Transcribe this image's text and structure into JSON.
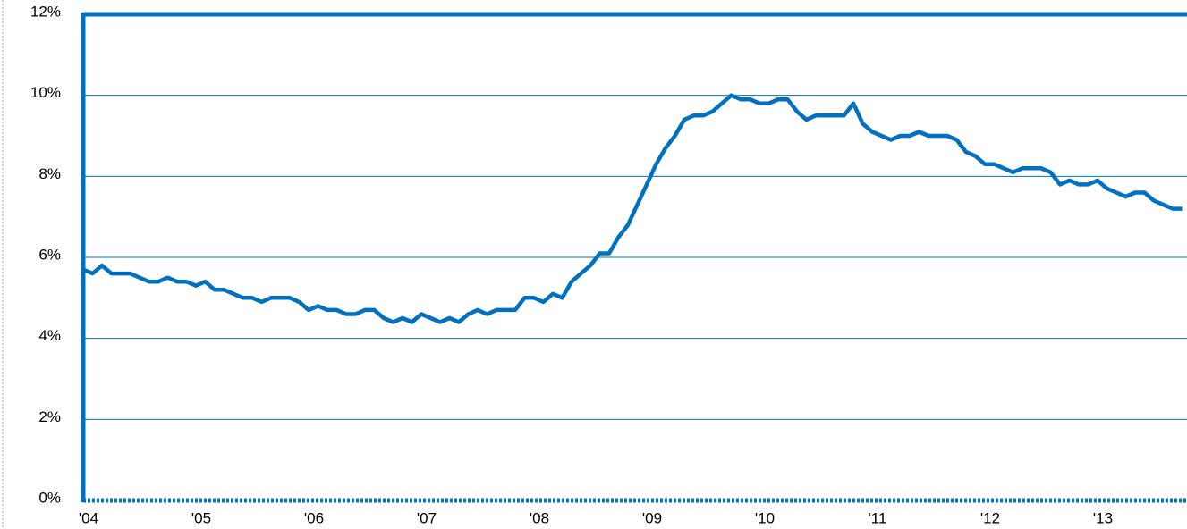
{
  "chart_data": {
    "type": "line",
    "categories": [
      "'04",
      null,
      null,
      null,
      null,
      null,
      null,
      null,
      null,
      null,
      null,
      null,
      "'05",
      null,
      null,
      null,
      null,
      null,
      null,
      null,
      null,
      null,
      null,
      null,
      "'06",
      null,
      null,
      null,
      null,
      null,
      null,
      null,
      null,
      null,
      null,
      null,
      "'07",
      null,
      null,
      null,
      null,
      null,
      null,
      null,
      null,
      null,
      null,
      null,
      "'08",
      null,
      null,
      null,
      null,
      null,
      null,
      null,
      null,
      null,
      null,
      null,
      "'09",
      null,
      null,
      null,
      null,
      null,
      null,
      null,
      null,
      null,
      null,
      null,
      "'10",
      null,
      null,
      null,
      null,
      null,
      null,
      null,
      null,
      null,
      null,
      null,
      "'11",
      null,
      null,
      null,
      null,
      null,
      null,
      null,
      null,
      null,
      null,
      null,
      "'12",
      null,
      null,
      null,
      null,
      null,
      null,
      null,
      null,
      null,
      null,
      null,
      "'13",
      null,
      null,
      null,
      null,
      null,
      null,
      null,
      null,
      null
    ],
    "values": [
      5.7,
      5.6,
      5.8,
      5.6,
      5.6,
      5.6,
      5.5,
      5.4,
      5.4,
      5.5,
      5.4,
      5.4,
      5.3,
      5.4,
      5.2,
      5.2,
      5.1,
      5.0,
      5.0,
      4.9,
      5.0,
      5.0,
      5.0,
      4.9,
      4.7,
      4.8,
      4.7,
      4.7,
      4.6,
      4.6,
      4.7,
      4.7,
      4.5,
      4.4,
      4.5,
      4.4,
      4.6,
      4.5,
      4.4,
      4.5,
      4.4,
      4.6,
      4.7,
      4.6,
      4.7,
      4.7,
      4.7,
      5.0,
      5.0,
      4.9,
      5.1,
      5.0,
      5.4,
      5.6,
      5.8,
      6.1,
      6.1,
      6.5,
      6.8,
      7.3,
      7.8,
      8.3,
      8.7,
      9.0,
      9.4,
      9.5,
      9.5,
      9.6,
      9.8,
      10.0,
      9.9,
      9.9,
      9.8,
      9.8,
      9.9,
      9.9,
      9.6,
      9.4,
      9.5,
      9.5,
      9.5,
      9.5,
      9.8,
      9.3,
      9.1,
      9.0,
      8.9,
      9.0,
      9.0,
      9.1,
      9.0,
      9.0,
      9.0,
      8.9,
      8.6,
      8.5,
      8.3,
      8.3,
      8.2,
      8.1,
      8.2,
      8.2,
      8.2,
      8.1,
      7.8,
      7.9,
      7.8,
      7.8,
      7.9,
      7.7,
      7.6,
      7.5,
      7.6,
      7.6,
      7.4,
      7.3,
      7.2,
      7.2
    ],
    "color": "#0070c0",
    "ylim": [
      0,
      12
    ],
    "yticks": [
      {
        "value": 0,
        "label": "0%"
      },
      {
        "value": 2,
        "label": "2%"
      },
      {
        "value": 4,
        "label": "4%"
      },
      {
        "value": 6,
        "label": "6%"
      },
      {
        "value": 8,
        "label": "8%"
      },
      {
        "value": 10,
        "label": "10%"
      },
      {
        "value": 12,
        "label": "12%"
      }
    ],
    "grid": true
  }
}
